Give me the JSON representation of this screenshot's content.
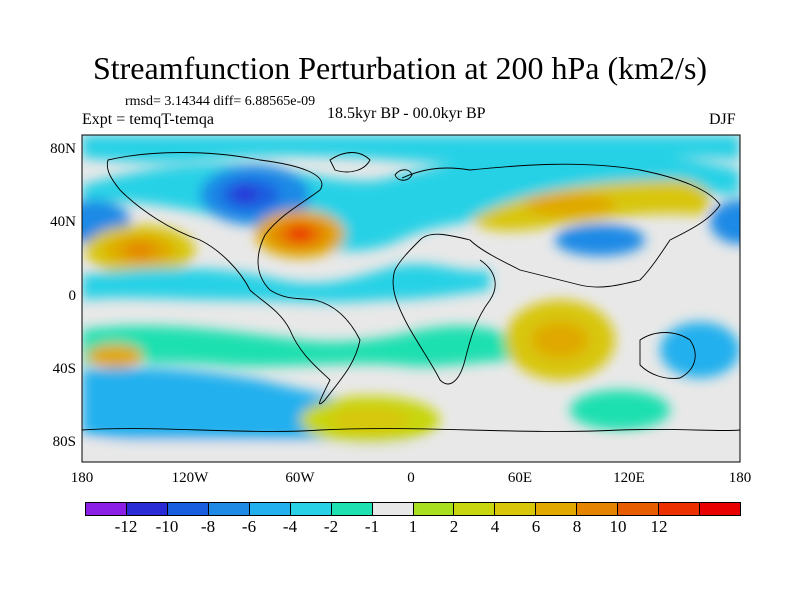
{
  "title": "Streamfunction Perturbation at 200 hPa (km2/s)",
  "stats": "rmsd= 3.14344 diff= 6.88565e-09",
  "experiment": "Expt = temqT-temqa",
  "period": "18.5kyr BP - 00.0kyr BP",
  "season": "DJF",
  "y_axis_labels": [
    "80N",
    "40N",
    "0",
    "40S",
    "80S"
  ],
  "x_axis_labels": [
    "180",
    "120W",
    "60W",
    "0",
    "60E",
    "120E",
    "180"
  ],
  "colorbar": {
    "colors": [
      "#8c1fe6",
      "#2b2bd6",
      "#1a5ee0",
      "#1f8ae6",
      "#22b0ee",
      "#28d1e6",
      "#1fe0b0",
      "#e8e8e8",
      "#a8e020",
      "#c8d610",
      "#d8c60a",
      "#e0a800",
      "#e48400",
      "#e85c00",
      "#ec3000",
      "#e80000"
    ],
    "labels": [
      "-12",
      "-10",
      "-8",
      "-6",
      "-4",
      "-2",
      "-1",
      "1",
      "2",
      "4",
      "6",
      "8",
      "10",
      "12"
    ]
  },
  "map": {
    "projection": "cylindrical-equidistant",
    "lon_range": [
      -180,
      180
    ],
    "lat_range": [
      -90,
      90
    ],
    "field": "streamfunction perturbation (km2/s)"
  }
}
